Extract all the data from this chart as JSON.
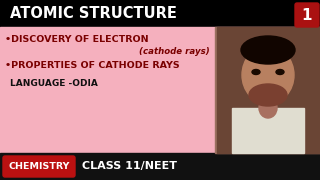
{
  "bg_top": "#000000",
  "bg_main": "#f5b0be",
  "bg_bottom": "#111111",
  "title_text": "ATOMIC STRUCTURE",
  "title_color": "#ffffff",
  "badge_color": "#aa1111",
  "badge_text": "1",
  "badge_text_color": "#ffffff",
  "line1_text": "•DISCOVERY OF ELECTRON",
  "line2_text": "(cathode rays)",
  "line3_text": "•PROPERTIES OF CATHODE RAYS",
  "line4_text": "LANGUAGE -ODIA",
  "content_text_color": "#7a0000",
  "language_text_color": "#111111",
  "chem_label": "CHEMISTRY",
  "chem_bg": "#bb1111",
  "chem_text_color": "#ffffff",
  "class_text": "CLASS 11/NEET",
  "class_text_color": "#ffffff",
  "photo_bg": "#9a7060",
  "photo_face": "#b88060",
  "photo_hair": "#110500",
  "photo_shirt": "#e0ddd0",
  "photo_neck": "#a87060"
}
